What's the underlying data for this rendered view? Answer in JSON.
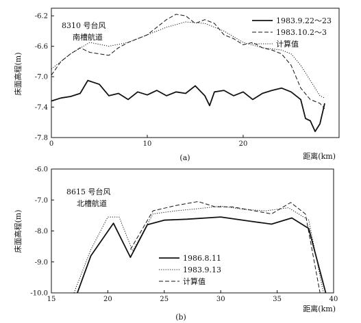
{
  "chart_data": [
    {
      "type": "line",
      "panel_caption": "(a)",
      "annotation_lines": [
        "8310 号台风",
        "南槽航道"
      ],
      "xlabel": "距离(km)",
      "ylabel": "床面高程(m)",
      "xlim": [
        0,
        30
      ],
      "ylim": [
        -7.8,
        -6.1
      ],
      "x_ticks": [
        0,
        10,
        20
      ],
      "x_tick_labels": [
        "0",
        "10",
        "20"
      ],
      "y_ticks": [
        -6.2,
        -6.6,
        -7.0,
        -7.4,
        -7.8
      ],
      "y_tick_labels": [
        "-6.2",
        "-6.6",
        "-7.0",
        "-7.4",
        "-7.8"
      ],
      "legend_position": "top-right",
      "grid": false,
      "series": [
        {
          "name": "1983.9.22～23",
          "style": "solid",
          "color": "#111111",
          "x": [
            0,
            1,
            2,
            3,
            3.8,
            5,
            6,
            7,
            8,
            9,
            10,
            11,
            12,
            13,
            14,
            15,
            16,
            16.5,
            17,
            18,
            19,
            20,
            21,
            22,
            23,
            24,
            25,
            26,
            26.5,
            27,
            27.5,
            28,
            28.5
          ],
          "y": [
            -7.32,
            -7.28,
            -7.26,
            -7.22,
            -7.05,
            -7.1,
            -7.25,
            -7.22,
            -7.3,
            -7.2,
            -7.24,
            -7.18,
            -7.25,
            -7.2,
            -7.22,
            -7.12,
            -7.25,
            -7.38,
            -7.2,
            -7.18,
            -7.25,
            -7.2,
            -7.3,
            -7.22,
            -7.18,
            -7.15,
            -7.2,
            -7.3,
            -7.55,
            -7.58,
            -7.72,
            -7.62,
            -7.35
          ]
        },
        {
          "name": "1983.10.2～3",
          "style": "dashed",
          "color": "#111111",
          "x": [
            0,
            1,
            2,
            3,
            4,
            5,
            6,
            7,
            8,
            9,
            10,
            11,
            12,
            13,
            14,
            15,
            16,
            17,
            18,
            19,
            20,
            21,
            22,
            23,
            24,
            25,
            26,
            27,
            28,
            28.5
          ],
          "y": [
            -6.98,
            -6.8,
            -6.7,
            -6.62,
            -6.68,
            -6.7,
            -6.72,
            -6.62,
            -6.55,
            -6.5,
            -6.45,
            -6.35,
            -6.25,
            -6.18,
            -6.2,
            -6.3,
            -6.25,
            -6.3,
            -6.45,
            -6.5,
            -6.58,
            -6.55,
            -6.62,
            -6.65,
            -6.7,
            -6.85,
            -7.15,
            -7.3,
            -7.35,
            -7.42
          ]
        },
        {
          "name": "计算值",
          "style": "dotted",
          "color": "#111111",
          "x": [
            0,
            2,
            4,
            6,
            8,
            10,
            12,
            14,
            16,
            18,
            20,
            22,
            24,
            25,
            26,
            27,
            28,
            28.5
          ],
          "y": [
            -6.9,
            -6.7,
            -6.55,
            -6.6,
            -6.55,
            -6.45,
            -6.35,
            -6.28,
            -6.3,
            -6.4,
            -6.55,
            -6.62,
            -6.65,
            -6.7,
            -6.85,
            -7.05,
            -7.25,
            -7.28
          ]
        }
      ]
    },
    {
      "type": "line",
      "panel_caption": "(b)",
      "annotation_lines": [
        "8615 号台风",
        "北槽航道"
      ],
      "xlabel": "距离(km)",
      "ylabel": "床面高程(m)",
      "xlim": [
        15,
        40
      ],
      "ylim": [
        -10.0,
        -6.0
      ],
      "x_ticks": [
        15,
        20,
        25,
        30,
        35,
        40
      ],
      "x_tick_labels": [
        "15",
        "20",
        "25",
        "30",
        "35",
        "40"
      ],
      "y_ticks": [
        -6.0,
        -7.0,
        -8.0,
        -9.0,
        -10.0
      ],
      "y_tick_labels": [
        "-6.0",
        "-7.0",
        "-8.0",
        "-9.0",
        "-10.0"
      ],
      "legend_position": "bottom-center",
      "grid": false,
      "series": [
        {
          "name": "1986.8.11",
          "style": "solid",
          "color": "#111111",
          "x": [
            17.3,
            18.5,
            20.5,
            22.0,
            23.5,
            25,
            27,
            30,
            32.5,
            34.5,
            36.3,
            37.8,
            39.3
          ],
          "y": [
            -10.0,
            -8.8,
            -7.75,
            -8.85,
            -7.8,
            -7.65,
            -7.62,
            -7.55,
            -7.68,
            -7.78,
            -7.58,
            -7.92,
            -10.0
          ]
        },
        {
          "name": "1983.9.13",
          "style": "dotted",
          "color": "#111111",
          "x": [
            17.0,
            18.5,
            20.0,
            21.0,
            22.2,
            24,
            26,
            28,
            30,
            32,
            34,
            36,
            37.8,
            39.1
          ],
          "y": [
            -10.0,
            -8.6,
            -7.55,
            -7.55,
            -8.65,
            -7.45,
            -7.35,
            -7.28,
            -7.2,
            -7.3,
            -7.35,
            -7.25,
            -7.65,
            -10.0
          ]
        },
        {
          "name": "计算值",
          "style": "dashed",
          "color": "#111111",
          "x": [
            22.0,
            24,
            26,
            28,
            29.5,
            31,
            33,
            34.5,
            36.2,
            37.5,
            38.8
          ],
          "y": [
            -8.6,
            -7.35,
            -7.18,
            -7.05,
            -7.22,
            -7.22,
            -7.35,
            -7.45,
            -7.08,
            -7.45,
            -10.0
          ]
        }
      ]
    }
  ]
}
